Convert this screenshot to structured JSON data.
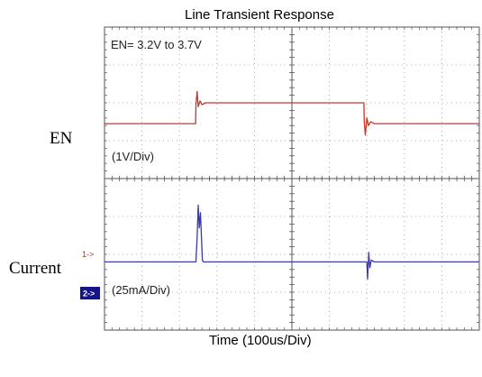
{
  "chart_data": {
    "type": "line",
    "title": "Line Transient Response",
    "xlabel": "Time (100us/Div)",
    "grid": true,
    "x_divisions": 10,
    "y_divisions": 8,
    "annotations": {
      "en_range": "EN= 3.2V to 3.7V",
      "en_scale": "(1V/Div)",
      "current_scale": "(25mA/Div)",
      "ch1_marker": "1->",
      "ch2_marker": "2->"
    },
    "trace_labels": {
      "en": "EN",
      "current": "Current"
    },
    "series": [
      {
        "name": "EN",
        "color": "#c0392b",
        "x_div": [
          0,
          2.43,
          2.44,
          2.47,
          2.5,
          2.55,
          2.6,
          2.7,
          6.92,
          6.93,
          6.96,
          7.0,
          7.04,
          7.1,
          7.2,
          10
        ],
        "y_div": [
          5.45,
          5.45,
          5.95,
          6.3,
          5.9,
          6.05,
          5.95,
          6.0,
          6.0,
          5.5,
          5.15,
          5.6,
          5.4,
          5.5,
          5.45,
          5.45
        ]
      },
      {
        "name": "Current",
        "color": "#3a3aa8",
        "x_div": [
          0,
          2.44,
          2.47,
          2.5,
          2.53,
          2.56,
          2.59,
          2.61,
          2.64,
          7.0,
          7.02,
          7.05,
          7.08,
          7.12,
          7.2,
          10
        ],
        "y_div": [
          1.8,
          1.8,
          2.45,
          3.3,
          2.7,
          3.1,
          2.4,
          1.85,
          1.8,
          1.8,
          1.35,
          2.05,
          1.65,
          1.85,
          1.8,
          1.8
        ]
      }
    ]
  }
}
